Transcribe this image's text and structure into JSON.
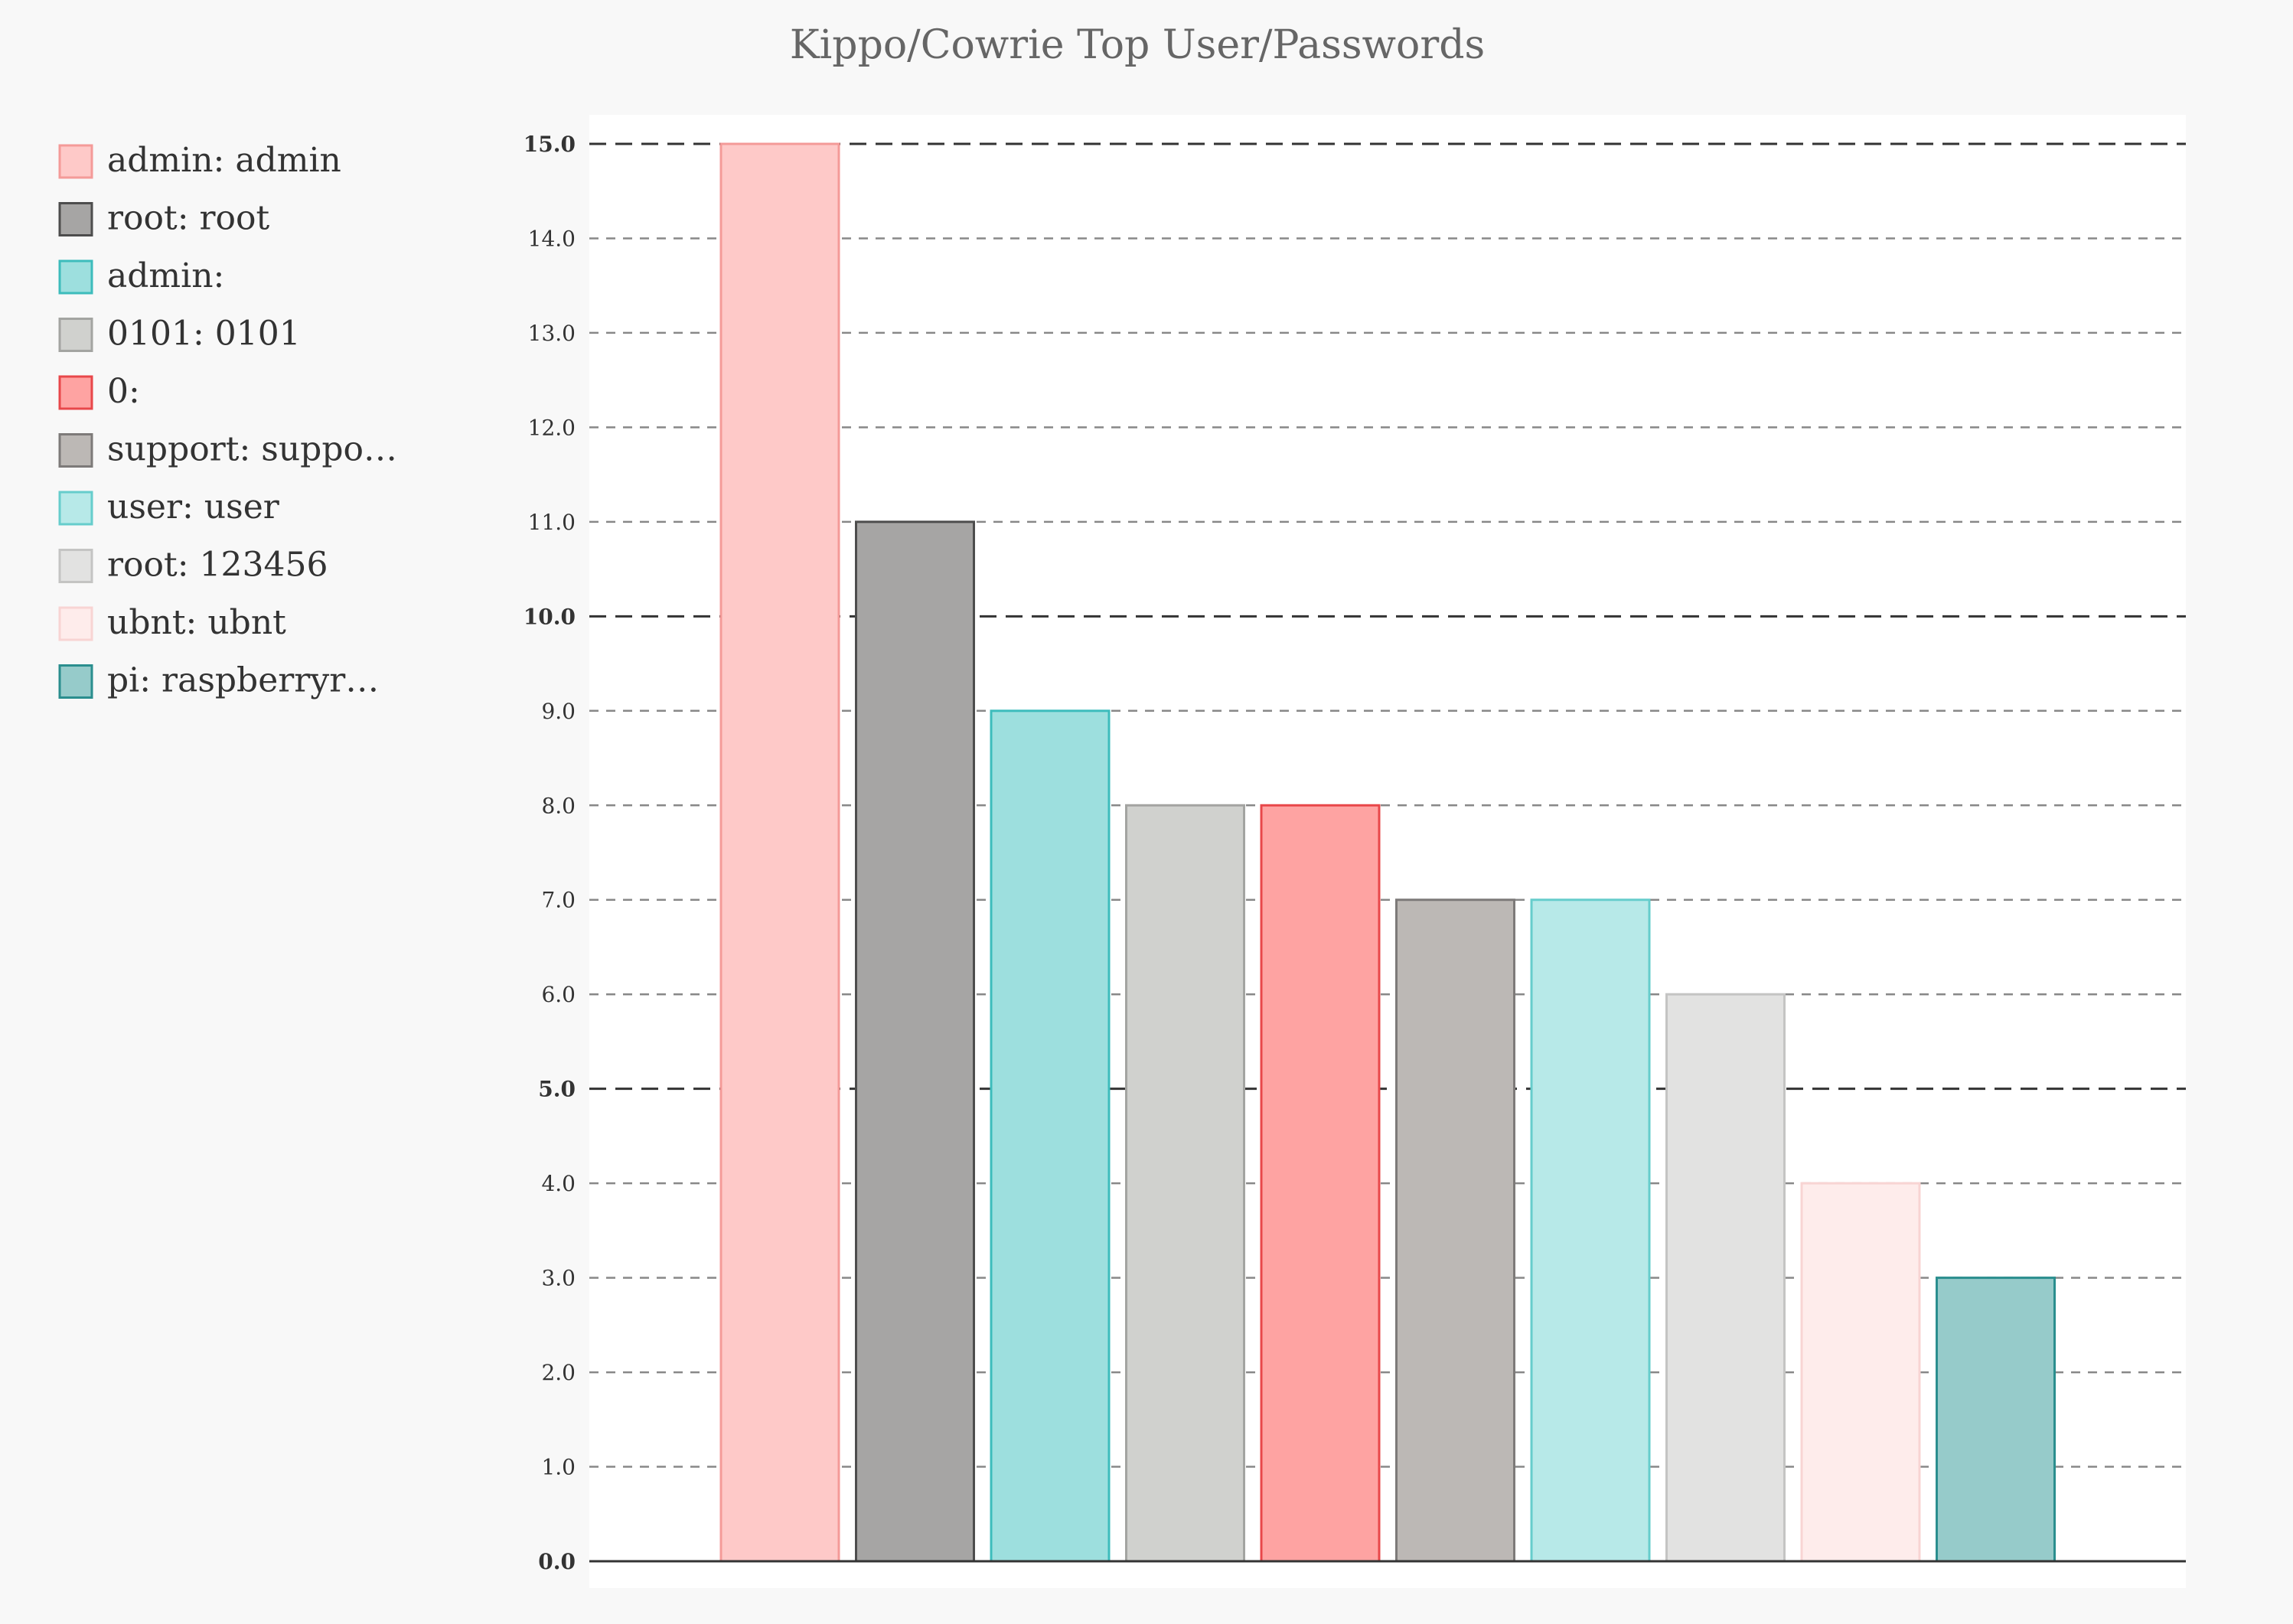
{
  "chart_data": {
    "type": "bar",
    "title": "Kippo/Cowrie Top User/Passwords",
    "xlabel": "",
    "ylabel": "",
    "ylim": [
      0,
      15
    ],
    "yticks": [
      "0.0",
      "1.0",
      "2.0",
      "3.0",
      "4.0",
      "5.0",
      "6.0",
      "7.0",
      "8.0",
      "9.0",
      "10.0",
      "11.0",
      "12.0",
      "13.0",
      "14.0",
      "15.0"
    ],
    "major_ticks": [
      0,
      5,
      10,
      15
    ],
    "grid": true,
    "legend_position": "left",
    "series": [
      {
        "name": "admin: admin",
        "value": 15,
        "fill": "#fec9c8",
        "stroke": "#f49a98"
      },
      {
        "name": "root: root",
        "value": 11,
        "fill": "#a6a5a4",
        "stroke": "#4d4d4d"
      },
      {
        "name": "admin:",
        "value": 9,
        "fill": "#9ddfde",
        "stroke": "#3dbcbc"
      },
      {
        "name": "0101: 0101",
        "value": 8,
        "fill": "#d0d1ce",
        "stroke": "#a3a4a1"
      },
      {
        "name": "0:",
        "value": 8,
        "fill": "#fea3a2",
        "stroke": "#e8474a"
      },
      {
        "name": "support: suppo…",
        "value": 7,
        "fill": "#bcb8b5",
        "stroke": "#7d7a79"
      },
      {
        "name": "user: user",
        "value": 7,
        "fill": "#b7e9e8",
        "stroke": "#66cdcc"
      },
      {
        "name": "root: 123456",
        "value": 6,
        "fill": "#e2e2e1",
        "stroke": "#c4c4c3"
      },
      {
        "name": "ubnt: ubnt",
        "value": 4,
        "fill": "#feeceb",
        "stroke": "#f8d4d3"
      },
      {
        "name": "pi: raspberryr…",
        "value": 3,
        "fill": "#96cbca",
        "stroke": "#2a8e8e"
      }
    ],
    "colors": {
      "background": "#f8f8f8",
      "plot_background": "#ffffff",
      "grid_major": "#333333",
      "grid_minor": "#888888",
      "axis": "#333333",
      "title": "#666666"
    }
  }
}
